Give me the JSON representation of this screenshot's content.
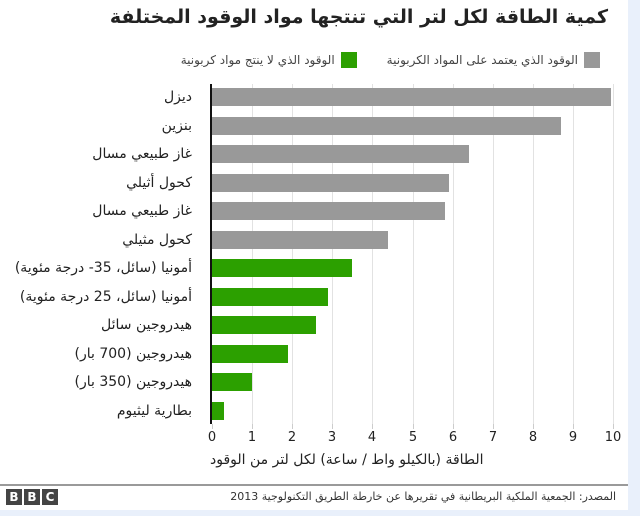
{
  "title": "كمية الطاقة لكل لتر التي تنتجها مواد الوقود المختلفة",
  "legend": [
    {
      "label": "الوقود الذي يعتمد على المواد الكربونية",
      "color": "#999999"
    },
    {
      "label": "الوقود الذي لا ينتج مواد كربونية",
      "color": "#2ca000"
    }
  ],
  "x_axis": {
    "title": "الطاقة (بالكيلو واط / ساعة) لكل لتر من الوقود",
    "ticks": [
      "0",
      "1",
      "2",
      "3",
      "4",
      "5",
      "6",
      "7",
      "8",
      "9",
      "10"
    ]
  },
  "footer": {
    "logo": [
      "B",
      "B",
      "C"
    ],
    "source": "المصدر: الجمعية الملكية البريطانية في تقريرها عن خارطة الطريق التكنولوجية 2013"
  },
  "chart_data": {
    "type": "bar",
    "orientation": "horizontal",
    "title": "كمية الطاقة لكل لتر التي تنتجها مواد الوقود المختلفة",
    "xlabel": "الطاقة (بالكيلو واط / ساعة) لكل لتر من الوقود",
    "ylabel": "",
    "xlim": [
      0,
      10
    ],
    "grid": true,
    "legend_position": "top",
    "categories": [
      "ديزل",
      "بنزين",
      "غاز طبيعي مسال",
      "كحول أثيلي",
      "غاز طبيعي مسال",
      "كحول مثيلي",
      "أمونيا (سائل، 35- درجة مئوية)",
      "أمونيا (سائل، 25 درجة مئوية)",
      "هيدروجين سائل",
      "هيدروجين (700 بار)",
      "هيدروجين (350 بار)",
      "بطارية ليثيوم"
    ],
    "values": [
      9.95,
      8.7,
      6.4,
      5.9,
      5.8,
      4.4,
      3.5,
      2.9,
      2.6,
      1.9,
      1.0,
      0.3
    ],
    "series_membership": [
      "carbon",
      "carbon",
      "carbon",
      "carbon",
      "carbon",
      "carbon",
      "carbon-free",
      "carbon-free",
      "carbon-free",
      "carbon-free",
      "carbon-free",
      "carbon-free"
    ],
    "series": [
      {
        "name": "الوقود الذي يعتمد على المواد الكربونية",
        "color": "#999999",
        "values": [
          9.95,
          8.7,
          6.4,
          5.9,
          5.8,
          4.4,
          null,
          null,
          null,
          null,
          null,
          null
        ]
      },
      {
        "name": "الوقود الذي لا ينتج مواد كربونية",
        "color": "#2ca000",
        "values": [
          null,
          null,
          null,
          null,
          null,
          null,
          3.5,
          2.9,
          2.6,
          1.9,
          1.0,
          0.3
        ]
      }
    ]
  }
}
